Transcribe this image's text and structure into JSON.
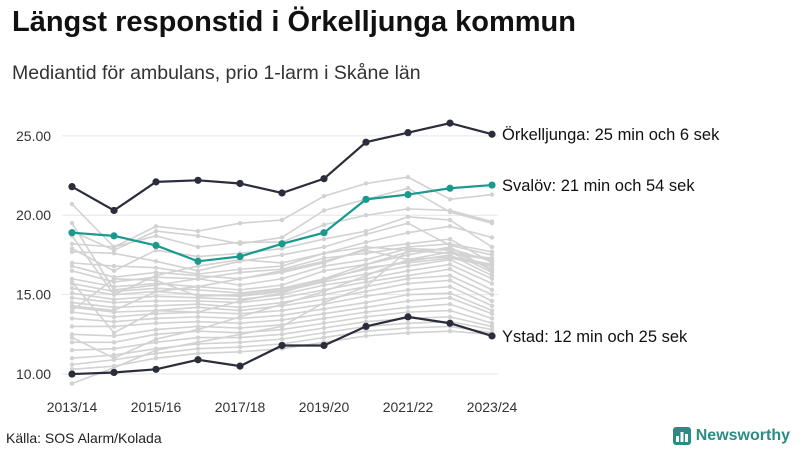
{
  "header": {
    "title": "Längst responstid i Örkelljunga kommun",
    "subtitle": "Mediantid för ambulans, prio 1-larm i Skåne län"
  },
  "footer": {
    "source": "Källa: SOS Alarm/Kolada",
    "brand": "Newsworthy"
  },
  "colors": {
    "background_lines": "#d2d2d2",
    "grid": "#e6e6e6",
    "highlight_dark": "#2b2d3a",
    "highlight_teal": "#1a9a8c",
    "brand": "#2a8c84"
  },
  "chart_data": {
    "type": "line",
    "x": [
      "2013/14",
      "2014/15",
      "2015/16",
      "2016/17",
      "2017/18",
      "2018/19",
      "2019/20",
      "2020/21",
      "2021/22",
      "2022/23",
      "2023/24"
    ],
    "x_tick_labels": [
      "2013/14",
      "2015/16",
      "2017/18",
      "2019/20",
      "2021/22",
      "2023/24"
    ],
    "y_ticks": [
      "10.00",
      "15.00",
      "20.00",
      "25.00"
    ],
    "ylim": [
      9.5,
      26.5
    ],
    "grid": true,
    "highlighted": [
      {
        "name": "Örkelljunga",
        "label": "Örkelljunga: 25 min och 6 sek",
        "color": "#2b2d3a",
        "values": [
          21.8,
          20.3,
          22.1,
          22.2,
          22.0,
          21.4,
          22.3,
          24.6,
          25.2,
          25.8,
          25.1
        ]
      },
      {
        "name": "Svalöv",
        "label": "Svalöv: 21 min och 54 sek",
        "color": "#1a9a8c",
        "values": [
          18.9,
          18.7,
          18.1,
          17.1,
          17.4,
          18.2,
          18.9,
          21.0,
          21.3,
          21.7,
          21.9
        ]
      },
      {
        "name": "Ystad",
        "label": "Ystad: 12 min och 25 sek",
        "color": "#2b2d3a",
        "values": [
          10.0,
          10.1,
          10.3,
          10.9,
          10.5,
          11.8,
          11.8,
          13.0,
          13.6,
          13.2,
          12.4
        ]
      }
    ],
    "background_series": [
      [
        20.7,
        18.0,
        19.3,
        19.0,
        19.5,
        19.7,
        21.2,
        22.0,
        22.4,
        21.0,
        21.3
      ],
      [
        19.0,
        17.8,
        19.0,
        18.7,
        18.2,
        18.6,
        20.3,
        21.0,
        21.7,
        20.2,
        19.5
      ],
      [
        18.2,
        18.0,
        18.7,
        18.0,
        18.3,
        18.3,
        19.4,
        20.0,
        20.4,
        20.3,
        19.6
      ],
      [
        17.9,
        16.5,
        17.8,
        17.4,
        17.6,
        17.9,
        18.5,
        19.0,
        19.9,
        19.7,
        18.0
      ],
      [
        17.7,
        17.6,
        17.1,
        16.5,
        17.1,
        17.5,
        18.0,
        18.8,
        19.5,
        18.1,
        17.5
      ],
      [
        17.0,
        16.8,
        16.7,
        16.3,
        16.6,
        16.8,
        17.6,
        18.0,
        17.8,
        17.6,
        17.3
      ],
      [
        16.8,
        16.1,
        16.4,
        16.2,
        16.0,
        16.5,
        17.1,
        17.8,
        17.2,
        17.4,
        16.9
      ],
      [
        16.5,
        15.8,
        16.1,
        16.0,
        15.6,
        16.0,
        16.8,
        17.2,
        17.9,
        17.8,
        16.6
      ],
      [
        16.0,
        15.5,
        15.7,
        15.5,
        15.3,
        15.6,
        16.5,
        16.9,
        17.5,
        18.0,
        16.5
      ],
      [
        15.7,
        15.2,
        15.4,
        15.3,
        15.1,
        15.4,
        16.0,
        16.6,
        17.1,
        17.5,
        16.2
      ],
      [
        15.4,
        15.0,
        15.2,
        15.0,
        14.9,
        15.2,
        15.8,
        16.3,
        16.8,
        17.2,
        16.0
      ],
      [
        15.1,
        14.7,
        14.9,
        14.8,
        14.7,
        15.0,
        15.6,
        16.0,
        16.5,
        16.9,
        15.7
      ],
      [
        14.8,
        14.5,
        14.6,
        14.6,
        14.5,
        14.8,
        15.3,
        15.8,
        16.2,
        16.6,
        15.3
      ],
      [
        14.5,
        14.2,
        14.3,
        14.4,
        14.2,
        14.5,
        15.0,
        15.5,
        16.0,
        16.2,
        15.0
      ],
      [
        14.2,
        13.9,
        14.0,
        14.2,
        14.0,
        14.3,
        14.7,
        15.2,
        15.7,
        15.9,
        14.6
      ],
      [
        13.9,
        13.6,
        13.8,
        13.9,
        13.8,
        14.0,
        14.4,
        14.9,
        15.3,
        15.5,
        14.3
      ],
      [
        13.5,
        13.3,
        13.5,
        13.6,
        13.5,
        13.7,
        14.1,
        14.5,
        15.0,
        15.1,
        14.0
      ],
      [
        13.0,
        13.0,
        13.2,
        13.3,
        13.2,
        13.4,
        13.8,
        14.2,
        14.6,
        14.8,
        13.8
      ],
      [
        12.5,
        12.4,
        12.8,
        13.0,
        12.9,
        13.1,
        13.5,
        13.9,
        14.2,
        14.4,
        13.5
      ],
      [
        12.0,
        12.0,
        12.5,
        12.7,
        12.6,
        12.8,
        13.2,
        13.6,
        13.9,
        14.0,
        13.2
      ],
      [
        11.5,
        11.6,
        12.0,
        12.3,
        12.3,
        12.5,
        12.9,
        13.3,
        13.5,
        13.6,
        13.0
      ],
      [
        11.0,
        11.2,
        11.6,
        11.9,
        12.0,
        12.2,
        12.6,
        13.0,
        13.2,
        13.3,
        12.8
      ],
      [
        10.6,
        10.9,
        11.3,
        11.6,
        11.7,
        11.9,
        12.3,
        12.7,
        12.9,
        13.0,
        12.6
      ],
      [
        10.3,
        10.5,
        11.0,
        11.3,
        11.4,
        11.6,
        12.0,
        12.4,
        12.6,
        12.7,
        12.5
      ],
      [
        9.4,
        10.4,
        11.5,
        12.0,
        12.5,
        13.0,
        14.5,
        15.5,
        17.8,
        17.6,
        17.2
      ],
      [
        14.3,
        14.0,
        15.2,
        15.5,
        16.0,
        16.4,
        17.0,
        17.9,
        18.2,
        18.5,
        17.0
      ],
      [
        18.7,
        15.0,
        16.2,
        16.8,
        17.2,
        17.0,
        17.6,
        18.3,
        18.9,
        19.3,
        18.6
      ],
      [
        12.3,
        11.0,
        12.2,
        12.8,
        13.6,
        14.4,
        15.2,
        16.2,
        17.2,
        17.7,
        16.4
      ],
      [
        15.8,
        12.6,
        14.0,
        13.9,
        14.6,
        15.1,
        16.0,
        16.9,
        17.7,
        17.9,
        17.1
      ],
      [
        19.5,
        15.3,
        15.6,
        16.0,
        16.4,
        16.6,
        17.3,
        17.6,
        18.0,
        18.2,
        17.7
      ],
      [
        14.0,
        16.0,
        15.9,
        14.9,
        15.0,
        15.3,
        15.9,
        16.7,
        17.0,
        17.3,
        16.8
      ]
    ]
  }
}
